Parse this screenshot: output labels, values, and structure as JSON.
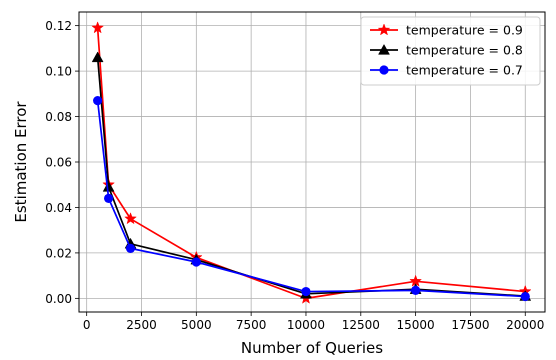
{
  "chart_data": {
    "type": "line",
    "xlabel": "Number of Queries",
    "ylabel": "Estimation Error",
    "xlim": [
      -350,
      20900
    ],
    "ylim": [
      -0.006,
      0.126
    ],
    "xticks": [
      0,
      2500,
      5000,
      7500,
      10000,
      12500,
      15000,
      17500,
      20000
    ],
    "xtick_labels": [
      "0",
      "2500",
      "5000",
      "7500",
      "10000",
      "12500",
      "15000",
      "17500",
      "20000"
    ],
    "yticks": [
      0.0,
      0.02,
      0.04,
      0.06,
      0.08,
      0.1,
      0.12
    ],
    "ytick_labels": [
      "0.00",
      "0.02",
      "0.04",
      "0.06",
      "0.08",
      "0.10",
      "0.12"
    ],
    "grid": true,
    "legend_position": "top-right",
    "x": [
      500,
      1000,
      2000,
      5000,
      10000,
      15000,
      20000
    ],
    "series": [
      {
        "name": "temperature = 0.9",
        "color": "#ff0000",
        "marker": "star",
        "values": [
          0.119,
          0.05,
          0.035,
          0.018,
          0.0,
          0.0075,
          0.003
        ]
      },
      {
        "name": "temperature = 0.8",
        "color": "#000000",
        "marker": "triangle",
        "values": [
          0.106,
          0.049,
          0.024,
          0.017,
          0.002,
          0.004,
          0.001
        ]
      },
      {
        "name": "temperature = 0.7",
        "color": "#0000ff",
        "marker": "circle",
        "values": [
          0.087,
          0.044,
          0.022,
          0.016,
          0.003,
          0.0035,
          0.0008
        ]
      }
    ]
  }
}
